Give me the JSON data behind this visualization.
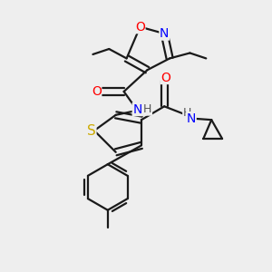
{
  "bg_color": "#eeeeee",
  "bond_color": "#1a1a1a",
  "bond_width": 1.6,
  "atom_colors": {
    "O": "#ff0000",
    "N": "#0000ff",
    "S": "#ccaa00",
    "C": "#1a1a1a",
    "H": "#555555"
  },
  "font_size": 9,
  "fig_size": [
    3.0,
    3.0
  ],
  "dpi": 100
}
